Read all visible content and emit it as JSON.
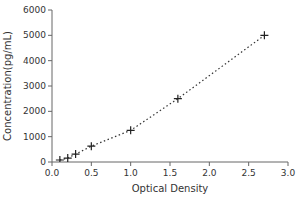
{
  "chart_data": {
    "type": "line",
    "x": [
      0.1,
      0.2,
      0.3,
      0.5,
      1.0,
      1.6,
      2.7
    ],
    "values": [
      78,
      156,
      312,
      625,
      1250,
      2500,
      5000
    ],
    "xlabel": "Optical Density",
    "ylabel": "Concentration(pg/mL)",
    "xlim": [
      0,
      3
    ],
    "ylim": [
      0,
      6000
    ],
    "xticks": [
      {
        "value": 0,
        "label": "0.0"
      },
      0.5,
      {
        "value": 1,
        "label": "1.0"
      },
      1.5,
      {
        "value": 2,
        "label": "2.0"
      },
      2.5,
      {
        "value": 3,
        "label": "3.0"
      }
    ],
    "yticks": [
      0,
      1000,
      2000,
      3000,
      4000,
      5000,
      6000
    ],
    "color": "#333333",
    "colors": [
      "#222222",
      "#222222",
      "#222222",
      "#222222",
      "#222222",
      "#222222",
      "#222222"
    ],
    "marker": "plus",
    "line_style": "dotted"
  }
}
